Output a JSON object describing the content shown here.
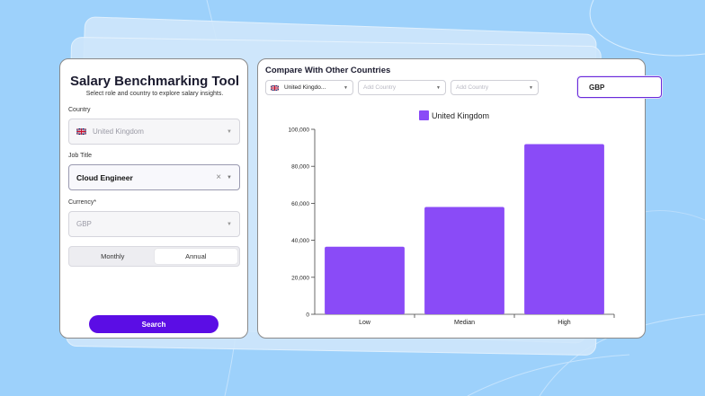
{
  "left": {
    "title": "Salary Benchmarking Tool",
    "subtitle": "Select role and country to explore salary insights.",
    "country_label": "Country",
    "country_value": "United Kingdom",
    "job_label": "Job Title",
    "job_value": "Cloud Engineer",
    "currency_label": "Currency*",
    "currency_value": "GBP",
    "toggle": [
      "Monthly",
      "Annual"
    ],
    "toggle_selected": "Annual",
    "search_label": "Search"
  },
  "right": {
    "title": "Compare With Other Countries",
    "country1": "United Kingdo...",
    "country2_placeholder": "Add Country",
    "country3_placeholder": "Add Country",
    "currency": "GBP"
  },
  "colors": {
    "accent": "#5b0de5",
    "bar": "#8a4bf7",
    "background": "#9dd1fb"
  },
  "chart_data": {
    "type": "bar",
    "categories": [
      "Low",
      "Median",
      "High"
    ],
    "series": [
      {
        "name": "United Kingdom",
        "values": [
          36500,
          58000,
          92000
        ]
      }
    ],
    "ylim": [
      0,
      100000
    ],
    "yticks": [
      "0",
      "20,000",
      "40,000",
      "60,000",
      "80,000",
      "100,000"
    ],
    "legend": "top-center",
    "grid": false
  }
}
